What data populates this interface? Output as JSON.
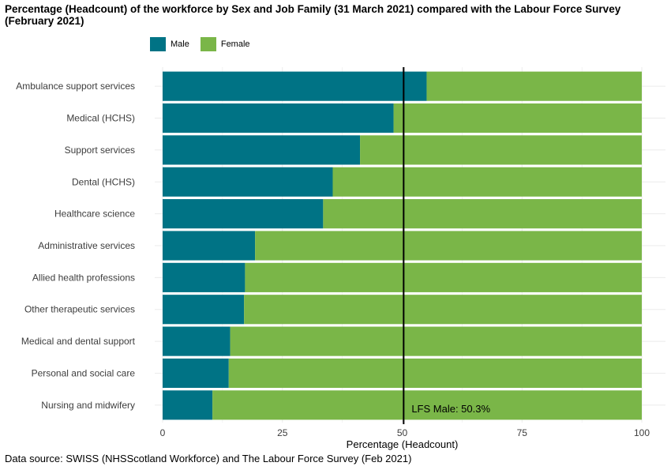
{
  "title": "Percentage (Headcount) of the workforce by Sex and Job Family (31 March 2021) compared with the Labour Force Survey (February 2021)",
  "footnote": "Data source: SWISS (NHSScotland Workforce) and The Labour Force Survey (Feb 2021)",
  "colors": {
    "male": "#007385",
    "female": "#7ab648",
    "grid": "#ebebeb",
    "reference_line": "#000000"
  },
  "legend": {
    "male_label": "Male",
    "female_label": "Female"
  },
  "chart_data": {
    "type": "bar",
    "orientation": "horizontal",
    "stacked": true,
    "categories": [
      "Ambulance support services",
      "Medical (HCHS)",
      "Support services",
      "Dental (HCHS)",
      "Healthcare science",
      "Administrative services",
      "Allied health professions",
      "Other therapeutic services",
      "Medical and dental support",
      "Personal and social care",
      "Nursing and midwifery"
    ],
    "series": [
      {
        "name": "Male",
        "values": [
          55.1,
          48.2,
          41.2,
          35.5,
          33.5,
          19.3,
          17.2,
          17.0,
          14.1,
          13.8,
          10.4
        ]
      },
      {
        "name": "Female",
        "values": [
          44.9,
          51.8,
          58.8,
          64.5,
          66.5,
          80.7,
          82.8,
          83.0,
          85.9,
          86.2,
          89.6
        ]
      }
    ],
    "xlabel": "Percentage (Headcount)",
    "ylabel": "",
    "xlim": [
      0,
      100
    ],
    "xticks": [
      "0",
      "25",
      "50",
      "75",
      "100"
    ],
    "reference_line": {
      "value": 50.3,
      "label": "LFS Male: 50.3%"
    },
    "legend_position": "top-left",
    "grid": true
  }
}
